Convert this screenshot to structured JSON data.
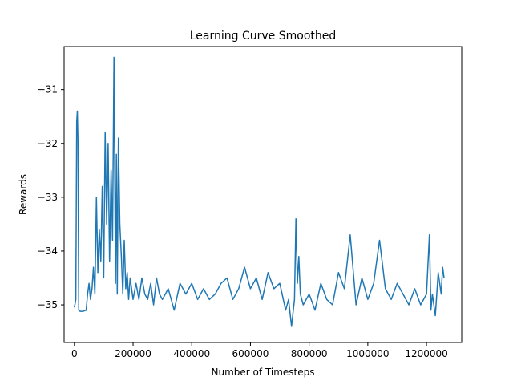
{
  "chart_data": {
    "type": "line",
    "title": "Learning Curve Smoothed",
    "xlabel": "Number of Timesteps",
    "ylabel": "Rewards",
    "xlim": [
      -35000,
      1320000
    ],
    "ylim": [
      -35.7,
      -30.2
    ],
    "xticks": [
      0,
      200000,
      400000,
      600000,
      800000,
      1000000,
      1200000
    ],
    "xtick_labels": [
      "0",
      "200000",
      "400000",
      "600000",
      "800000",
      "1000000",
      "1200000"
    ],
    "yticks": [
      -31,
      -32,
      -33,
      -34,
      -35
    ],
    "ytick_labels": [
      "−31",
      "−32",
      "−33",
      "−34",
      "−35"
    ],
    "grid": false,
    "legend": "none",
    "line_color": "#1f77b4",
    "series": [
      {
        "x": [
          0,
          5000,
          8000,
          10000,
          12000,
          15000,
          20000,
          30000,
          40000,
          45000,
          50000,
          55000,
          60000,
          65000,
          70000,
          75000,
          80000,
          85000,
          90000,
          95000,
          100000,
          105000,
          110000,
          115000,
          120000,
          125000,
          130000,
          135000,
          140000,
          143000,
          146000,
          150000,
          155000,
          160000,
          165000,
          170000,
          175000,
          180000,
          185000,
          190000,
          195000,
          200000,
          210000,
          220000,
          230000,
          240000,
          250000,
          260000,
          270000,
          280000,
          290000,
          300000,
          320000,
          340000,
          360000,
          380000,
          400000,
          420000,
          440000,
          460000,
          480000,
          500000,
          520000,
          540000,
          560000,
          580000,
          600000,
          620000,
          640000,
          660000,
          680000,
          700000,
          720000,
          730000,
          740000,
          750000,
          755000,
          760000,
          765000,
          770000,
          780000,
          800000,
          820000,
          840000,
          860000,
          880000,
          900000,
          920000,
          940000,
          960000,
          980000,
          1000000,
          1020000,
          1040000,
          1060000,
          1080000,
          1100000,
          1120000,
          1140000,
          1160000,
          1180000,
          1200000,
          1210000,
          1215000,
          1220000,
          1230000,
          1240000,
          1250000,
          1255000,
          1260000
        ],
        "y": [
          -35.05,
          -34.9,
          -31.6,
          -31.4,
          -31.9,
          -35.1,
          -35.12,
          -35.12,
          -35.1,
          -34.8,
          -34.6,
          -34.9,
          -34.7,
          -34.3,
          -34.8,
          -33.0,
          -34.4,
          -33.6,
          -34.2,
          -32.8,
          -34.5,
          -31.8,
          -33.5,
          -32.0,
          -34.2,
          -32.5,
          -33.8,
          -30.4,
          -34.6,
          -32.2,
          -34.8,
          -31.9,
          -33.5,
          -34.1,
          -34.8,
          -33.8,
          -34.7,
          -34.4,
          -34.9,
          -34.5,
          -34.7,
          -34.9,
          -34.6,
          -34.9,
          -34.5,
          -34.8,
          -34.9,
          -34.6,
          -35.0,
          -34.5,
          -34.8,
          -34.9,
          -34.7,
          -35.1,
          -34.6,
          -34.8,
          -34.6,
          -34.9,
          -34.7,
          -34.9,
          -34.8,
          -34.6,
          -34.5,
          -34.9,
          -34.7,
          -34.3,
          -34.7,
          -34.5,
          -34.9,
          -34.4,
          -34.7,
          -34.6,
          -35.1,
          -34.9,
          -35.4,
          -34.9,
          -33.4,
          -34.6,
          -34.1,
          -34.8,
          -35.0,
          -34.8,
          -35.1,
          -34.6,
          -34.9,
          -35.0,
          -34.4,
          -34.7,
          -33.7,
          -35.0,
          -34.5,
          -34.9,
          -34.6,
          -33.8,
          -34.7,
          -34.9,
          -34.6,
          -34.8,
          -35.0,
          -34.7,
          -35.0,
          -34.8,
          -33.7,
          -35.1,
          -34.8,
          -35.2,
          -34.4,
          -34.8,
          -34.3,
          -34.5
        ]
      }
    ]
  }
}
